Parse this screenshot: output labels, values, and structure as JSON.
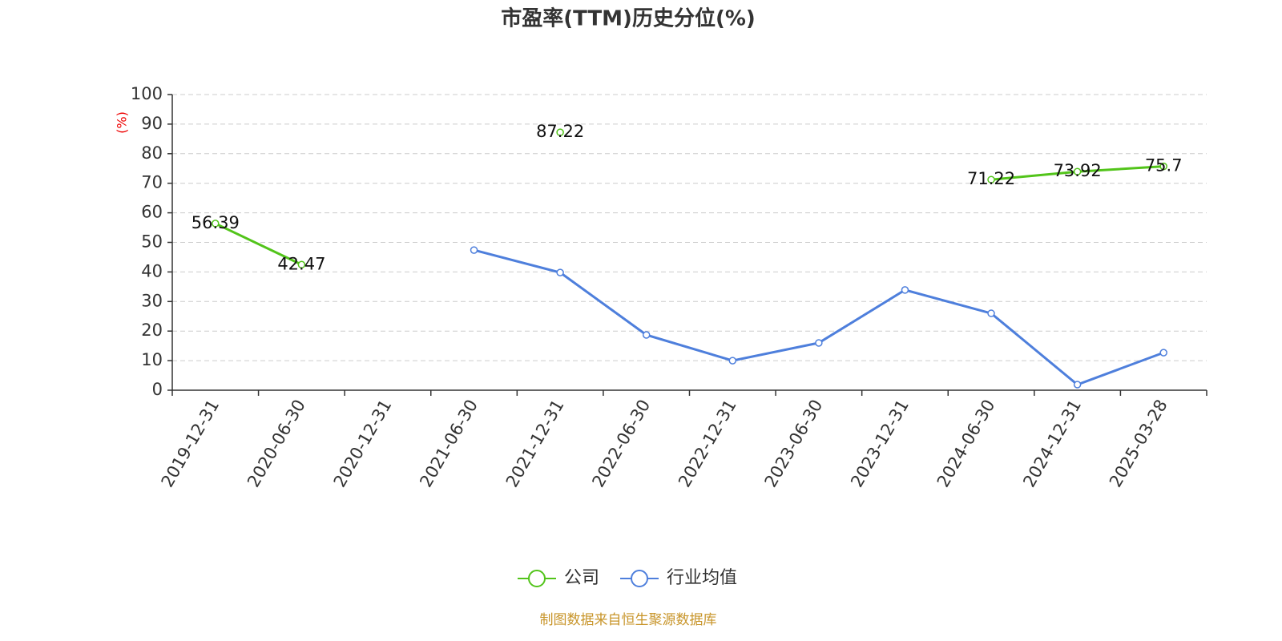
{
  "chart_data": {
    "type": "line",
    "title": "市盈率(TTM)历史分位(%)",
    "y_label": "(%)",
    "source": "制图数据来自恒生聚源数据库",
    "categories": [
      "2019-12-31",
      "2020-06-30",
      "2020-12-31",
      "2021-06-30",
      "2021-12-31",
      "2022-06-30",
      "2022-12-31",
      "2023-06-30",
      "2023-12-31",
      "2024-06-30",
      "2024-12-31",
      "2025-03-28"
    ],
    "series": [
      {
        "name": "公司",
        "color": "#52c41a",
        "data_labels": true,
        "values": [
          56.39,
          42.47,
          null,
          null,
          87.22,
          null,
          null,
          null,
          null,
          71.22,
          73.92,
          75.7
        ]
      },
      {
        "name": "行业均值",
        "color": "#4e7fdc",
        "data_labels": false,
        "values": [
          null,
          null,
          null,
          47.4,
          39.8,
          18.7,
          10.0,
          16.0,
          33.9,
          26.0,
          1.9,
          12.7
        ]
      }
    ],
    "ylim": [
      0,
      100
    ],
    "yticks": [
      0,
      10,
      20,
      30,
      40,
      50,
      60,
      70,
      80,
      90,
      100
    ],
    "grid": true,
    "legend": "bottom"
  }
}
